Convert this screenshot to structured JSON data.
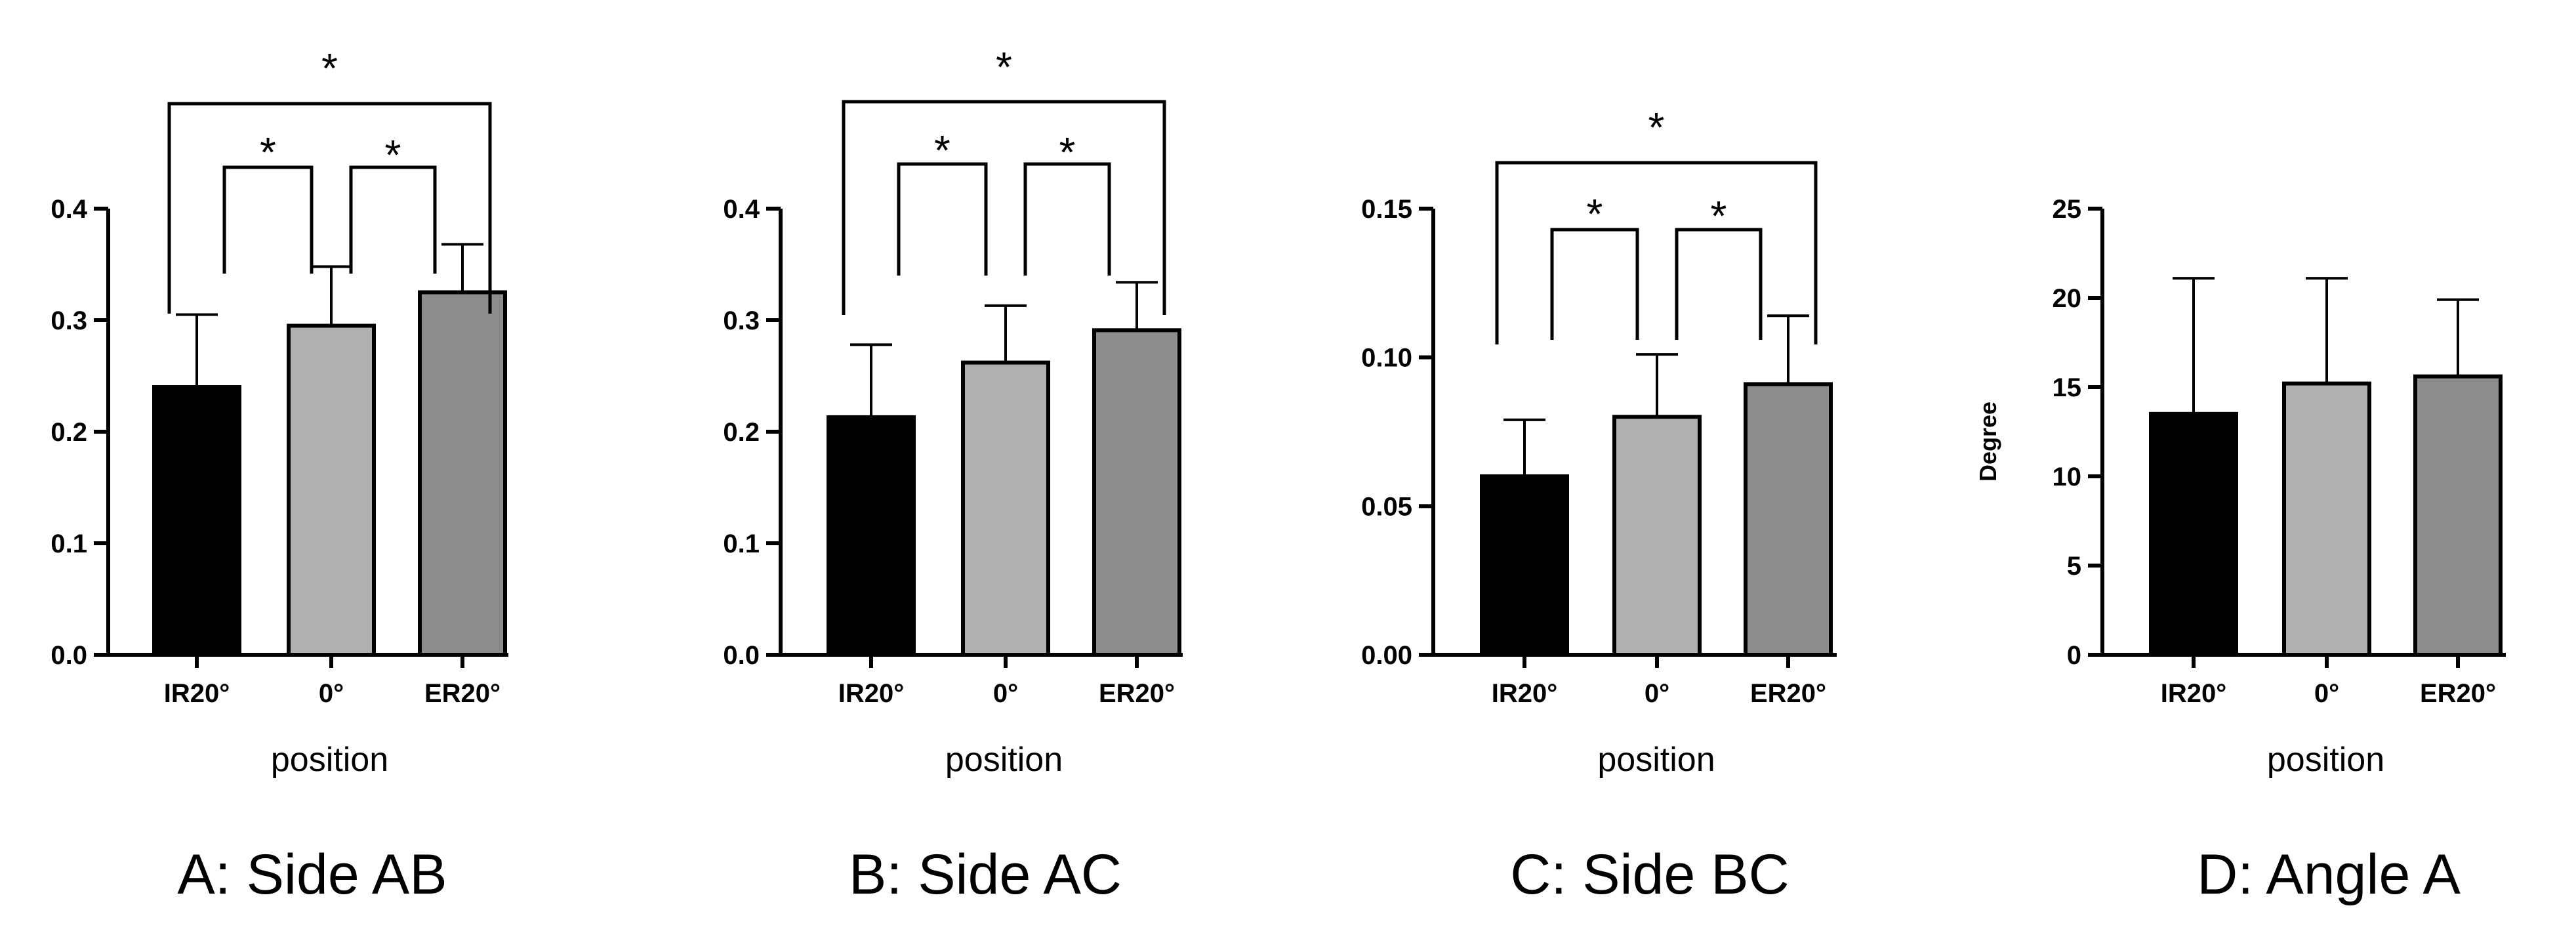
{
  "chart_data": [
    {
      "type": "bar",
      "caption": "A: Side AB",
      "categories": [
        "IR20°",
        "0°",
        "ER20°"
      ],
      "values": [
        0.24,
        0.295,
        0.325
      ],
      "errors": [
        0.065,
        0.053,
        0.043
      ],
      "colors": [
        "#000000",
        "#b0b0b0",
        "#8c8c8c"
      ],
      "xlabel": "position",
      "ylabel": "",
      "ylim": [
        0,
        0.4
      ],
      "yticks": [
        "0.0",
        "0.1",
        "0.2",
        "0.3",
        "0.4"
      ],
      "significance": [
        {
          "from": 0,
          "to": 1,
          "label": "*"
        },
        {
          "from": 1,
          "to": 2,
          "label": "*"
        },
        {
          "from": 0,
          "to": 2,
          "label": "*"
        }
      ]
    },
    {
      "type": "bar",
      "caption": "B: Side AC",
      "categories": [
        "IR20°",
        "0°",
        "ER20°"
      ],
      "values": [
        0.213,
        0.262,
        0.291
      ],
      "errors": [
        0.065,
        0.051,
        0.043
      ],
      "colors": [
        "#000000",
        "#b0b0b0",
        "#8c8c8c"
      ],
      "xlabel": "position",
      "ylabel": "",
      "ylim": [
        0,
        0.4
      ],
      "yticks": [
        "0.0",
        "0.1",
        "0.2",
        "0.3",
        "0.4"
      ],
      "significance": [
        {
          "from": 0,
          "to": 1,
          "label": "*"
        },
        {
          "from": 1,
          "to": 2,
          "label": "*"
        },
        {
          "from": 0,
          "to": 2,
          "label": "*"
        }
      ]
    },
    {
      "type": "bar",
      "caption": "C: Side BC",
      "categories": [
        "IR20°",
        "0°",
        "ER20°"
      ],
      "values": [
        0.06,
        0.08,
        0.091
      ],
      "errors": [
        0.019,
        0.021,
        0.023
      ],
      "colors": [
        "#000000",
        "#b0b0b0",
        "#8c8c8c"
      ],
      "xlabel": "position",
      "ylabel": "",
      "ylim": [
        0,
        0.15
      ],
      "yticks": [
        "0.00",
        "0.05",
        "0.10",
        "0.15"
      ],
      "significance": [
        {
          "from": 0,
          "to": 1,
          "label": "*"
        },
        {
          "from": 1,
          "to": 2,
          "label": "*"
        },
        {
          "from": 0,
          "to": 2,
          "label": "*"
        }
      ]
    },
    {
      "type": "bar",
      "caption": "D: Angle  A",
      "categories": [
        "IR20°",
        "0°",
        "ER20°"
      ],
      "values": [
        13.5,
        15.2,
        15.6
      ],
      "errors": [
        7.6,
        5.9,
        4.3
      ],
      "colors": [
        "#000000",
        "#b0b0b0",
        "#8c8c8c"
      ],
      "xlabel": "position",
      "ylabel": "Degree",
      "ylim": [
        0,
        25
      ],
      "yticks": [
        "0",
        "5",
        "10",
        "15",
        "20",
        "25"
      ],
      "significance": []
    }
  ]
}
